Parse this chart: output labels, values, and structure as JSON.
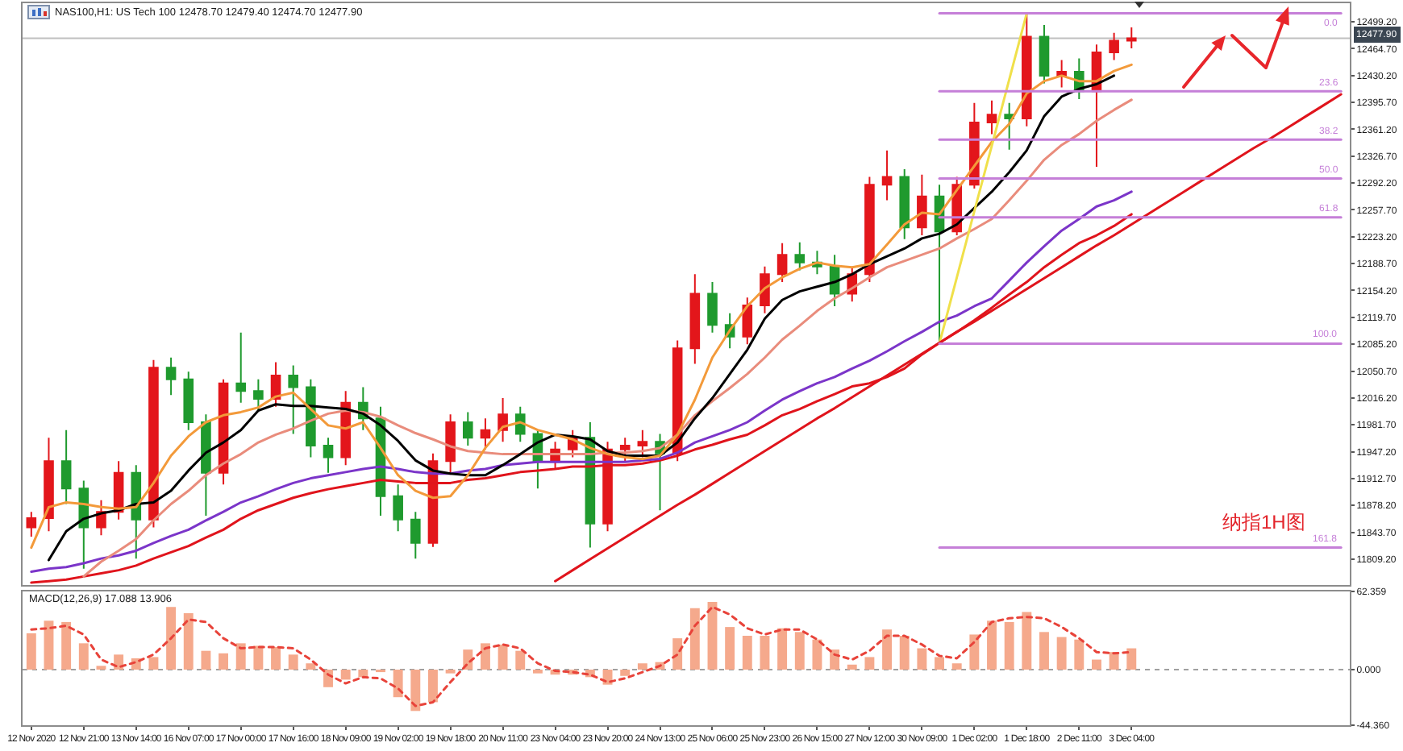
{
  "chart_data": [
    {
      "type": "candlestick",
      "title": "NAS100,H1: US Tech 100 12478.70 12479.40 12474.70 12477.90",
      "categories": [
        null,
        null,
        null,
        null,
        null,
        null,
        null,
        null,
        null,
        null,
        null,
        null,
        null,
        null,
        null,
        null,
        null,
        null,
        null,
        null,
        null,
        null,
        null,
        null,
        null,
        null,
        null,
        null,
        null,
        null,
        null,
        null,
        null,
        null,
        null,
        null,
        null,
        null,
        null,
        null,
        null,
        null,
        null,
        null,
        null,
        null,
        null,
        null,
        null,
        null,
        null,
        null,
        null,
        null,
        null,
        null,
        null,
        null,
        null,
        null,
        null,
        null,
        null,
        null,
        null,
        null,
        null,
        null,
        null,
        null,
        null,
        null,
        null,
        null,
        null,
        null
      ],
      "ohlc": [
        [
          11850,
          11870,
          11838,
          11862
        ],
        [
          11862,
          11965,
          11845,
          11935
        ],
        [
          11935,
          11975,
          11880,
          11900
        ],
        [
          11900,
          11910,
          11797,
          11850
        ],
        [
          11850,
          11885,
          11840,
          11870
        ],
        [
          11870,
          11935,
          11860,
          11920
        ],
        [
          11920,
          11930,
          11810,
          11860
        ],
        [
          11860,
          12065,
          11850,
          12055
        ],
        [
          12055,
          12068,
          12020,
          12040
        ],
        [
          12040,
          12050,
          11975,
          11985
        ],
        [
          11985,
          11995,
          11865,
          11920
        ],
        [
          11920,
          12040,
          11905,
          12035
        ],
        [
          12035,
          12100,
          12010,
          12025
        ],
        [
          12025,
          12040,
          12000,
          12015
        ],
        [
          12015,
          12062,
          12005,
          12045
        ],
        [
          12045,
          12058,
          11970,
          12030
        ],
        [
          12030,
          12040,
          11940,
          11955
        ],
        [
          11955,
          11965,
          11920,
          11940
        ],
        [
          11940,
          12025,
          11930,
          12010
        ],
        [
          12010,
          12030,
          11975,
          11990
        ],
        [
          11990,
          12005,
          11865,
          11890
        ],
        [
          11890,
          11905,
          11845,
          11860
        ],
        [
          11860,
          11870,
          11810,
          11830
        ],
        [
          11830,
          11945,
          11825,
          11935
        ],
        [
          11935,
          11995,
          11920,
          11985
        ],
        [
          11985,
          11998,
          11955,
          11965
        ],
        [
          11965,
          11990,
          11950,
          11975
        ],
        [
          11975,
          12016,
          11960,
          11995
        ],
        [
          11995,
          12005,
          11960,
          11970
        ],
        [
          11970,
          11975,
          11900,
          11935
        ],
        [
          11935,
          11960,
          11925,
          11950
        ],
        [
          11950,
          11975,
          11940,
          11965
        ],
        [
          11965,
          11985,
          11824,
          11855
        ],
        [
          11855,
          11960,
          11845,
          11950
        ],
        [
          11950,
          11965,
          11935,
          11955
        ],
        [
          11955,
          11975,
          11940,
          11960
        ],
        [
          11960,
          11970,
          11872,
          11945
        ],
        [
          11945,
          12090,
          11935,
          12080
        ],
        [
          12080,
          12175,
          12060,
          12150
        ],
        [
          12150,
          12165,
          12100,
          12110
        ],
        [
          12110,
          12125,
          12080,
          12095
        ],
        [
          12095,
          12145,
          12085,
          12135
        ],
        [
          12135,
          12185,
          12125,
          12175
        ],
        [
          12175,
          12215,
          12165,
          12200
        ],
        [
          12200,
          12216,
          12180,
          12190
        ],
        [
          12190,
          12205,
          12175,
          12185
        ],
        [
          12185,
          12200,
          12134,
          12150
        ],
        [
          12150,
          12185,
          12140,
          12175
        ],
        [
          12175,
          12300,
          12165,
          12290
        ],
        [
          12290,
          12334,
          12270,
          12300
        ],
        [
          12300,
          12310,
          12220,
          12235
        ],
        [
          12235,
          12303,
          12225,
          12275
        ],
        [
          12275,
          12290,
          12086,
          12230
        ],
        [
          12230,
          12300,
          12225,
          12290
        ],
        [
          12290,
          12395,
          12285,
          12370
        ],
        [
          12370,
          12398,
          12355,
          12380
        ],
        [
          12380,
          12395,
          12335,
          12375
        ],
        [
          12375,
          12510,
          12365,
          12480
        ],
        [
          12480,
          12495,
          12420,
          12430
        ],
        [
          12430,
          12450,
          12415,
          12435
        ],
        [
          12435,
          12452,
          12400,
          12410
        ],
        [
          12410,
          12470,
          12313,
          12460
        ],
        [
          12460,
          12485,
          12450,
          12475
        ],
        [
          12475,
          12492,
          12465,
          12477.9
        ],
        null,
        null,
        null,
        null,
        null,
        null,
        null,
        null,
        null,
        null,
        null,
        null
      ],
      "colors": [
        "#e3161b",
        "#e3161b",
        "#1f9a2e",
        "#1f9a2e",
        "#e3161b",
        "#e3161b",
        "#1f9a2e",
        "#e3161b",
        "#1f9a2e",
        "#1f9a2e",
        "#1f9a2e",
        "#e3161b",
        "#1f9a2e",
        "#1f9a2e",
        "#e3161b",
        "#1f9a2e",
        "#1f9a2e",
        "#1f9a2e",
        "#e3161b",
        "#1f9a2e",
        "#1f9a2e",
        "#1f9a2e",
        "#1f9a2e",
        "#e3161b",
        "#e3161b",
        "#1f9a2e",
        "#e3161b",
        "#e3161b",
        "#1f9a2e",
        "#1f9a2e",
        "#e3161b",
        "#e3161b",
        "#1f9a2e",
        "#e3161b",
        "#e3161b",
        "#e3161b",
        "#1f9a2e",
        "#e3161b",
        "#e3161b",
        "#1f9a2e",
        "#1f9a2e",
        "#e3161b",
        "#e3161b",
        "#e3161b",
        "#1f9a2e",
        "#1f9a2e",
        "#1f9a2e",
        "#e3161b",
        "#e3161b",
        "#e3161b",
        "#1f9a2e",
        "#e3161b",
        "#1f9a2e",
        "#e3161b",
        "#e3161b",
        "#e3161b",
        "#1f9a2e",
        "#e3161b",
        "#1f9a2e",
        "#e3161b",
        "#1f9a2e",
        "#e3161b",
        "#e3161b",
        "#e3161b",
        null,
        null,
        null,
        null,
        null,
        null,
        null,
        null,
        null,
        null,
        null,
        null
      ],
      "series": [
        {
          "type": "line",
          "color": "#e0141c",
          "values": [
            11779,
            11781,
            11783,
            11787,
            11791,
            11795,
            11801,
            11810,
            11818,
            11826,
            11837,
            11847,
            11861,
            11872,
            11880,
            11888,
            11894,
            11899,
            11903,
            11907,
            11911,
            11909,
            11907,
            11907,
            11907,
            11911,
            11913,
            11917,
            11921,
            11923,
            11925,
            11928,
            11928,
            11930,
            11930,
            11932,
            11936,
            11942,
            11950,
            11956,
            11963,
            11969,
            11981,
            11994,
            12002,
            12012,
            12021,
            12031,
            12035,
            12043,
            12054,
            12072,
            12087,
            12101,
            12116,
            12132,
            12149,
            12165,
            12184,
            12200,
            12215,
            12225,
            12237,
            12252,
            null,
            null,
            null,
            null,
            null,
            null,
            null,
            null,
            null,
            null,
            null,
            null
          ]
        },
        {
          "type": "line",
          "color": "#7b35c9",
          "values": [
            11793,
            11797,
            11799,
            11804,
            11810,
            11814,
            11820,
            11830,
            11839,
            11847,
            11859,
            11870,
            11882,
            11890,
            11899,
            11907,
            11913,
            11917,
            11921,
            11925,
            11928,
            11925,
            11921,
            11919,
            11919,
            11923,
            11925,
            11930,
            11932,
            11934,
            11934,
            11934,
            11934,
            11934,
            11934,
            11936,
            11938,
            11946,
            11959,
            11967,
            11975,
            11985,
            12000,
            12014,
            12025,
            12035,
            12043,
            12054,
            12064,
            12076,
            12089,
            12101,
            12114,
            12122,
            12134,
            12144,
            12167,
            12190,
            12211,
            12231,
            12246,
            12262,
            12270,
            12281,
            null,
            null,
            null,
            null,
            null,
            null,
            null,
            null,
            null,
            null,
            null,
            null
          ]
        },
        {
          "type": "line",
          "color": "#e98c7c",
          "values": [
            null,
            null,
            null,
            11787,
            11806,
            11820,
            11835,
            11859,
            11880,
            11897,
            11917,
            11932,
            11944,
            11959,
            11969,
            11977,
            11987,
            11996,
            12000,
            11998,
            11992,
            11981,
            11971,
            11963,
            11954,
            11948,
            11946,
            11944,
            11944,
            11944,
            11944,
            11944,
            11944,
            11946,
            11946,
            11948,
            11952,
            11969,
            11994,
            12012,
            12029,
            12047,
            12068,
            12091,
            12109,
            12128,
            12144,
            12157,
            12171,
            12184,
            12192,
            12200,
            12208,
            12221,
            12233,
            12246,
            12270,
            12295,
            12322,
            12341,
            12355,
            12372,
            12386,
            12399,
            null,
            null,
            null,
            null,
            null,
            null,
            null,
            null,
            null,
            null,
            null,
            null
          ]
        },
        {
          "type": "line",
          "color": "#000000",
          "values": [
            null,
            11808,
            11845,
            11861,
            11868,
            11872,
            11880,
            11882,
            11897,
            11923,
            11946,
            11959,
            11975,
            12000,
            12008,
            12006,
            12006,
            12004,
            12002,
            11996,
            11981,
            11961,
            11936,
            11923,
            11919,
            11917,
            11917,
            11930,
            11944,
            11959,
            11969,
            11967,
            11963,
            11948,
            11942,
            11942,
            11942,
            11959,
            11990,
            12016,
            12047,
            12078,
            12118,
            12142,
            12153,
            12159,
            12165,
            12175,
            12188,
            12198,
            12208,
            12221,
            12227,
            12239,
            12260,
            12281,
            12306,
            12334,
            12378,
            12403,
            12413,
            12419,
            12430,
            null,
            null,
            null,
            null,
            null,
            null,
            null,
            null,
            null,
            null,
            null,
            null,
            null
          ]
        },
        {
          "type": "line",
          "color": "#f39a3a",
          "values": [
            11824,
            11876,
            11882,
            11880,
            11876,
            11874,
            11876,
            11907,
            11942,
            11967,
            11985,
            11994,
            11998,
            12004,
            12018,
            12023,
            12002,
            11981,
            11977,
            11985,
            11952,
            11917,
            11897,
            11888,
            11890,
            11917,
            11952,
            11979,
            11985,
            11975,
            11969,
            11963,
            11952,
            11944,
            11940,
            11938,
            11942,
            11969,
            12014,
            12068,
            12103,
            12134,
            12157,
            12171,
            12182,
            12190,
            12186,
            12184,
            12188,
            12213,
            12239,
            12254,
            12252,
            12283,
            12314,
            12345,
            12368,
            12407,
            12423,
            12430,
            12423,
            12423,
            12436,
            12444,
            null,
            null,
            null,
            null,
            null,
            null,
            null,
            null,
            null,
            null,
            null,
            null
          ]
        },
        {
          "type": "line",
          "color": "#f0e04a",
          "values": [
            null,
            null,
            null,
            null,
            null,
            null,
            null,
            null,
            null,
            null,
            null,
            null,
            null,
            null,
            null,
            null,
            null,
            null,
            null,
            null,
            null,
            null,
            null,
            null,
            null,
            null,
            null,
            null,
            null,
            null,
            null,
            null,
            null,
            null,
            null,
            null,
            null,
            null,
            null,
            null,
            null,
            null,
            null,
            null,
            null,
            null,
            null,
            null,
            null,
            null,
            null,
            null,
            12086,
            12171,
            12256,
            12340,
            12425,
            12510,
            null,
            null,
            null,
            null,
            null,
            null,
            null,
            null,
            null,
            null,
            null,
            null,
            null,
            null,
            null,
            null,
            null,
            null
          ]
        },
        {
          "type": "line",
          "color": "#e0141c",
          "values": [
            null,
            null,
            null,
            null,
            null,
            null,
            null,
            null,
            null,
            null,
            null,
            null,
            null,
            null,
            null,
            null,
            null,
            null,
            null,
            null,
            null,
            null,
            null,
            null,
            null,
            null,
            null,
            null,
            null,
            null,
            11781,
            11795,
            11809,
            11823,
            11837,
            11851,
            11865,
            11879,
            11892,
            11906,
            11920,
            11934,
            11948,
            11962,
            11976,
            11990,
            12003,
            12017,
            12031,
            12045,
            12059,
            12073,
            12087,
            12101,
            12114,
            12128,
            12142,
            12156,
            12170,
            12184,
            12198,
            12212,
            12225,
            12239,
            12253,
            12267,
            12281,
            12295,
            12309,
            12323,
            12337,
            12350,
            12364,
            12378,
            12392,
            12406
          ]
        },
        {
          "type": "line",
          "name": "0.0",
          "color": "#c57fd8",
          "values": [
            null,
            null,
            null,
            null,
            null,
            null,
            null,
            null,
            null,
            null,
            null,
            null,
            null,
            null,
            null,
            null,
            null,
            null,
            null,
            null,
            null,
            null,
            null,
            null,
            null,
            null,
            null,
            null,
            null,
            null,
            null,
            null,
            null,
            null,
            null,
            null,
            null,
            null,
            null,
            null,
            null,
            null,
            null,
            null,
            null,
            null,
            null,
            null,
            null,
            null,
            null,
            null,
            12510,
            12510,
            12510,
            12510,
            12510,
            12510,
            12510,
            12510,
            12510,
            12510,
            12510,
            12510,
            12510,
            12510,
            12510,
            12510,
            12510,
            12510,
            12510,
            12510,
            12510,
            12510,
            12510,
            12510
          ]
        },
        {
          "type": "line",
          "name": "23.6",
          "color": "#c57fd8",
          "values": [
            null,
            null,
            null,
            null,
            null,
            null,
            null,
            null,
            null,
            null,
            null,
            null,
            null,
            null,
            null,
            null,
            null,
            null,
            null,
            null,
            null,
            null,
            null,
            null,
            null,
            null,
            null,
            null,
            null,
            null,
            null,
            null,
            null,
            null,
            null,
            null,
            null,
            null,
            null,
            null,
            null,
            null,
            null,
            null,
            null,
            null,
            null,
            null,
            null,
            null,
            null,
            null,
            12410,
            12410,
            12410,
            12410,
            12410,
            12410,
            12410,
            12410,
            12410,
            12410,
            12410,
            12410,
            12410,
            12410,
            12410,
            12410,
            12410,
            12410,
            12410,
            12410,
            12410,
            12410,
            12410,
            12410
          ]
        },
        {
          "type": "line",
          "name": "38.2",
          "color": "#c57fd8",
          "values": [
            null,
            null,
            null,
            null,
            null,
            null,
            null,
            null,
            null,
            null,
            null,
            null,
            null,
            null,
            null,
            null,
            null,
            null,
            null,
            null,
            null,
            null,
            null,
            null,
            null,
            null,
            null,
            null,
            null,
            null,
            null,
            null,
            null,
            null,
            null,
            null,
            null,
            null,
            null,
            null,
            null,
            null,
            null,
            null,
            null,
            null,
            null,
            null,
            null,
            null,
            null,
            null,
            12348,
            12348,
            12348,
            12348,
            12348,
            12348,
            12348,
            12348,
            12348,
            12348,
            12348,
            12348,
            12348,
            12348,
            12348,
            12348,
            12348,
            12348,
            12348,
            12348,
            12348,
            12348,
            12348,
            12348
          ]
        },
        {
          "type": "line",
          "name": "50.0",
          "color": "#c57fd8",
          "values": [
            null,
            null,
            null,
            null,
            null,
            null,
            null,
            null,
            null,
            null,
            null,
            null,
            null,
            null,
            null,
            null,
            null,
            null,
            null,
            null,
            null,
            null,
            null,
            null,
            null,
            null,
            null,
            null,
            null,
            null,
            null,
            null,
            null,
            null,
            null,
            null,
            null,
            null,
            null,
            null,
            null,
            null,
            null,
            null,
            null,
            null,
            null,
            null,
            null,
            null,
            null,
            null,
            12298,
            12298,
            12298,
            12298,
            12298,
            12298,
            12298,
            12298,
            12298,
            12298,
            12298,
            12298,
            12298,
            12298,
            12298,
            12298,
            12298,
            12298,
            12298,
            12298,
            12298,
            12298,
            12298,
            12298
          ]
        },
        {
          "type": "line",
          "name": "61.8",
          "color": "#c57fd8",
          "values": [
            null,
            null,
            null,
            null,
            null,
            null,
            null,
            null,
            null,
            null,
            null,
            null,
            null,
            null,
            null,
            null,
            null,
            null,
            null,
            null,
            null,
            null,
            null,
            null,
            null,
            null,
            null,
            null,
            null,
            null,
            null,
            null,
            null,
            null,
            null,
            null,
            null,
            null,
            null,
            null,
            null,
            null,
            null,
            null,
            null,
            null,
            null,
            null,
            null,
            null,
            null,
            null,
            12248,
            12248,
            12248,
            12248,
            12248,
            12248,
            12248,
            12248,
            12248,
            12248,
            12248,
            12248,
            12248,
            12248,
            12248,
            12248,
            12248,
            12248,
            12248,
            12248,
            12248,
            12248,
            12248,
            12248
          ]
        },
        {
          "type": "line",
          "name": "100.0",
          "color": "#c57fd8",
          "values": [
            null,
            null,
            null,
            null,
            null,
            null,
            null,
            null,
            null,
            null,
            null,
            null,
            null,
            null,
            null,
            null,
            null,
            null,
            null,
            null,
            null,
            null,
            null,
            null,
            null,
            null,
            null,
            null,
            null,
            null,
            null,
            null,
            null,
            null,
            null,
            null,
            null,
            null,
            null,
            null,
            null,
            null,
            null,
            null,
            null,
            null,
            null,
            null,
            null,
            null,
            null,
            null,
            12086,
            12086,
            12086,
            12086,
            12086,
            12086,
            12086,
            12086,
            12086,
            12086,
            12086,
            12086,
            12086,
            12086,
            12086,
            12086,
            12086,
            12086,
            12086,
            12086,
            12086,
            12086,
            12086,
            12086
          ]
        },
        {
          "type": "line",
          "name": "161.8",
          "color": "#c57fd8",
          "values": [
            null,
            null,
            null,
            null,
            null,
            null,
            null,
            null,
            null,
            null,
            null,
            null,
            null,
            null,
            null,
            null,
            null,
            null,
            null,
            null,
            null,
            null,
            null,
            null,
            null,
            null,
            null,
            null,
            null,
            null,
            null,
            null,
            null,
            null,
            null,
            null,
            null,
            null,
            null,
            null,
            null,
            null,
            null,
            null,
            null,
            null,
            null,
            null,
            null,
            null,
            null,
            null,
            11824,
            11824,
            11824,
            11824,
            11824,
            11824,
            11824,
            11824,
            11824,
            11824,
            11824,
            11824,
            11824,
            11824,
            11824,
            11824,
            11824,
            11824,
            11824,
            11824,
            11824,
            11824,
            11824,
            11824
          ]
        }
      ],
      "ylim": [
        11776,
        12523
      ],
      "yticks": [
        {
          "value": 12499.2,
          "label": "12499.20"
        },
        {
          "value": 12464.7,
          "label": "12464.70"
        },
        {
          "value": 12430.2,
          "label": "12430.20"
        },
        {
          "value": 12395.7,
          "label": "12395.70"
        },
        {
          "value": 12361.2,
          "label": "12361.20"
        },
        {
          "value": 12326.7,
          "label": "12326.70"
        },
        {
          "value": 12292.2,
          "label": "12292.20"
        },
        {
          "value": 12257.7,
          "label": "12257.70"
        },
        {
          "value": 12223.2,
          "label": "12223.20"
        },
        {
          "value": 12188.7,
          "label": "12188.70"
        },
        {
          "value": 12154.2,
          "label": "12154.20"
        },
        {
          "value": 12119.7,
          "label": "12119.70"
        },
        {
          "value": 12085.2,
          "label": "12085.20"
        },
        {
          "value": 12050.7,
          "label": "12050.70"
        },
        {
          "value": 12016.2,
          "label": "12016.20"
        },
        {
          "value": 11981.7,
          "label": "11981.70"
        },
        {
          "value": 11947.2,
          "label": "11947.20"
        },
        {
          "value": 11912.7,
          "label": "11912.70"
        },
        {
          "value": 11878.2,
          "label": "11878.20"
        },
        {
          "value": 11843.7,
          "label": "11843.70"
        },
        {
          "value": 11809.2,
          "label": "11809.20"
        }
      ],
      "ref_lines": [
        {
          "axis": "y",
          "value": 12477.9,
          "label": "12477.90",
          "color": "#c0c0c0"
        }
      ],
      "annotations": [
        "纳指1H图"
      ]
    },
    {
      "type": "bar",
      "title": "MACD(12,26,9) 17.088 13.906",
      "categories": [
        "12 Nov 2020",
        null,
        null,
        "12 Nov 21:00",
        null,
        null,
        "13 Nov 14:00",
        null,
        null,
        "16 Nov 07:00",
        null,
        null,
        "17 Nov 00:00",
        null,
        null,
        "17 Nov 16:00",
        null,
        null,
        "18 Nov 09:00",
        null,
        null,
        "19 Nov 02:00",
        null,
        null,
        "19 Nov 18:00",
        null,
        null,
        "20 Nov 11:00",
        null,
        null,
        "23 Nov 04:00",
        null,
        null,
        "23 Nov 20:00",
        null,
        null,
        "24 Nov 13:00",
        null,
        null,
        "25 Nov 06:00",
        null,
        null,
        "25 Nov 23:00",
        null,
        null,
        "26 Nov 15:00",
        null,
        null,
        "27 Nov 12:00",
        null,
        null,
        "30 Nov 09:00",
        null,
        null,
        "1 Dec 02:00",
        null,
        null,
        "1 Dec 18:00",
        null,
        null,
        "2 Dec 11:00",
        null,
        null,
        "3 Dec 04:00",
        null,
        null,
        null,
        null,
        null,
        null,
        null,
        null,
        null,
        null,
        null,
        null
      ],
      "series": [
        {
          "type": "bar",
          "color": "#f5a98c",
          "values": [
            29,
            39,
            38,
            21,
            3,
            12,
            9,
            10,
            50,
            45,
            15,
            13,
            21,
            19,
            18,
            12,
            5,
            -14,
            -8,
            -6,
            -2,
            -22,
            -33,
            -26,
            -3,
            16,
            21,
            20,
            15,
            -3,
            -4,
            -4,
            -6,
            -12,
            -5,
            5,
            6,
            25,
            49,
            54,
            34,
            27,
            27,
            33,
            30,
            24,
            16,
            4,
            10,
            32,
            27,
            17,
            10,
            5,
            28,
            39,
            38,
            46,
            30,
            26,
            24,
            8,
            14,
            17,
            null,
            null,
            null,
            null,
            null,
            null,
            null,
            null,
            null,
            null,
            null,
            null
          ]
        },
        {
          "type": "line",
          "color": "#e8433a",
          "line_style": "dotted",
          "values": [
            32,
            33,
            35,
            28,
            8,
            2,
            6,
            12,
            25,
            40,
            38,
            25,
            17,
            18,
            18,
            17,
            8,
            -4,
            -11,
            -6,
            -7,
            -15,
            -29,
            -26,
            -10,
            5,
            17,
            20,
            17,
            5,
            -1,
            -2,
            -4,
            -10,
            -7,
            -2,
            3,
            12,
            35,
            50,
            44,
            33,
            28,
            32,
            32,
            24,
            12,
            8,
            15,
            27,
            27,
            20,
            11,
            9,
            22,
            38,
            41,
            42,
            41,
            34,
            25,
            14,
            13,
            14,
            null,
            null,
            null,
            null,
            null,
            null,
            null,
            null,
            null,
            null,
            null,
            null
          ]
        }
      ],
      "ylim": [
        -44.36,
        62.359
      ],
      "yticks": [
        62.359,
        {
          "value": 0,
          "label": "0.000"
        },
        {
          "value": -44.36,
          "label": "-44.360"
        }
      ],
      "ref_lines": [
        {
          "axis": "y",
          "value": 0,
          "color": "#a0a0a0",
          "line_style": "dotted"
        }
      ]
    }
  ]
}
